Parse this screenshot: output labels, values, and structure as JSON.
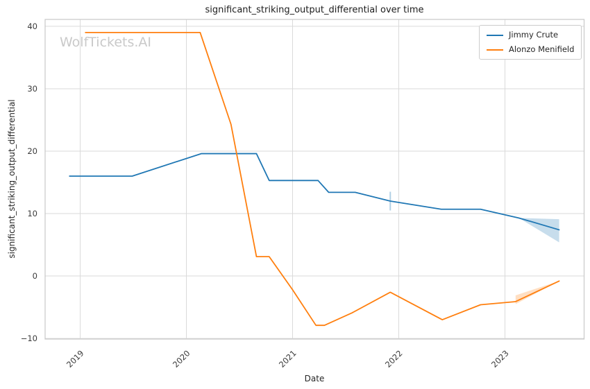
{
  "watermark": "WolfTickets.AI",
  "chart_data": {
    "type": "line",
    "title": "significant_striking_output_differential over time",
    "xlabel": "Date",
    "ylabel": "significant_striking_output_differential",
    "grid": true,
    "legend_position": "upper right",
    "xlim": [
      2018.67,
      2023.745
    ],
    "ylim": [
      -10.1,
      41.1
    ],
    "x_ticks": [
      {
        "value": 2019,
        "label": "2019"
      },
      {
        "value": 2020,
        "label": "2020"
      },
      {
        "value": 2021,
        "label": "2021"
      },
      {
        "value": 2022,
        "label": "2022"
      },
      {
        "value": 2023,
        "label": "2023"
      }
    ],
    "y_ticks": [
      {
        "value": -10,
        "label": "−10"
      },
      {
        "value": 0,
        "label": "0"
      },
      {
        "value": 10,
        "label": "10"
      },
      {
        "value": 20,
        "label": "20"
      },
      {
        "value": 30,
        "label": "30"
      },
      {
        "value": 40,
        "label": "40"
      }
    ],
    "series": [
      {
        "name": "Jimmy Crute",
        "color": "#1f77b4",
        "x": [
          2018.9,
          2019.49,
          2020.14,
          2020.66,
          2020.78,
          2021.24,
          2021.34,
          2021.59,
          2021.92,
          2022.4,
          2022.77,
          2023.13,
          2023.51
        ],
        "y": [
          16.0,
          16.0,
          19.6,
          19.6,
          15.3,
          15.3,
          13.4,
          13.4,
          12.0,
          10.7,
          10.7,
          9.3,
          7.4
        ],
        "band": {
          "x": [
            2023.13,
            2023.51
          ],
          "upper": [
            9.3,
            9.1
          ],
          "lower": [
            9.3,
            5.4
          ]
        },
        "whisker": {
          "x": 2021.92,
          "low": 10.5,
          "high": 13.5
        }
      },
      {
        "name": "Alonzo Menifield",
        "color": "#ff7f0e",
        "x": [
          2019.05,
          2020.13,
          2020.42,
          2020.66,
          2020.78,
          2021.0,
          2021.22,
          2021.3,
          2021.56,
          2021.92,
          2022.41,
          2022.77,
          2023.1,
          2023.51
        ],
        "y": [
          39.0,
          39.0,
          24.3,
          3.1,
          3.1,
          -2.2,
          -7.9,
          -7.9,
          -5.9,
          -2.6,
          -7.0,
          -4.6,
          -4.1,
          -0.8
        ],
        "band": {
          "x": [
            2023.1,
            2023.51
          ],
          "upper": [
            -3.1,
            -0.8
          ],
          "lower": [
            -4.5,
            -0.8
          ]
        }
      }
    ]
  }
}
